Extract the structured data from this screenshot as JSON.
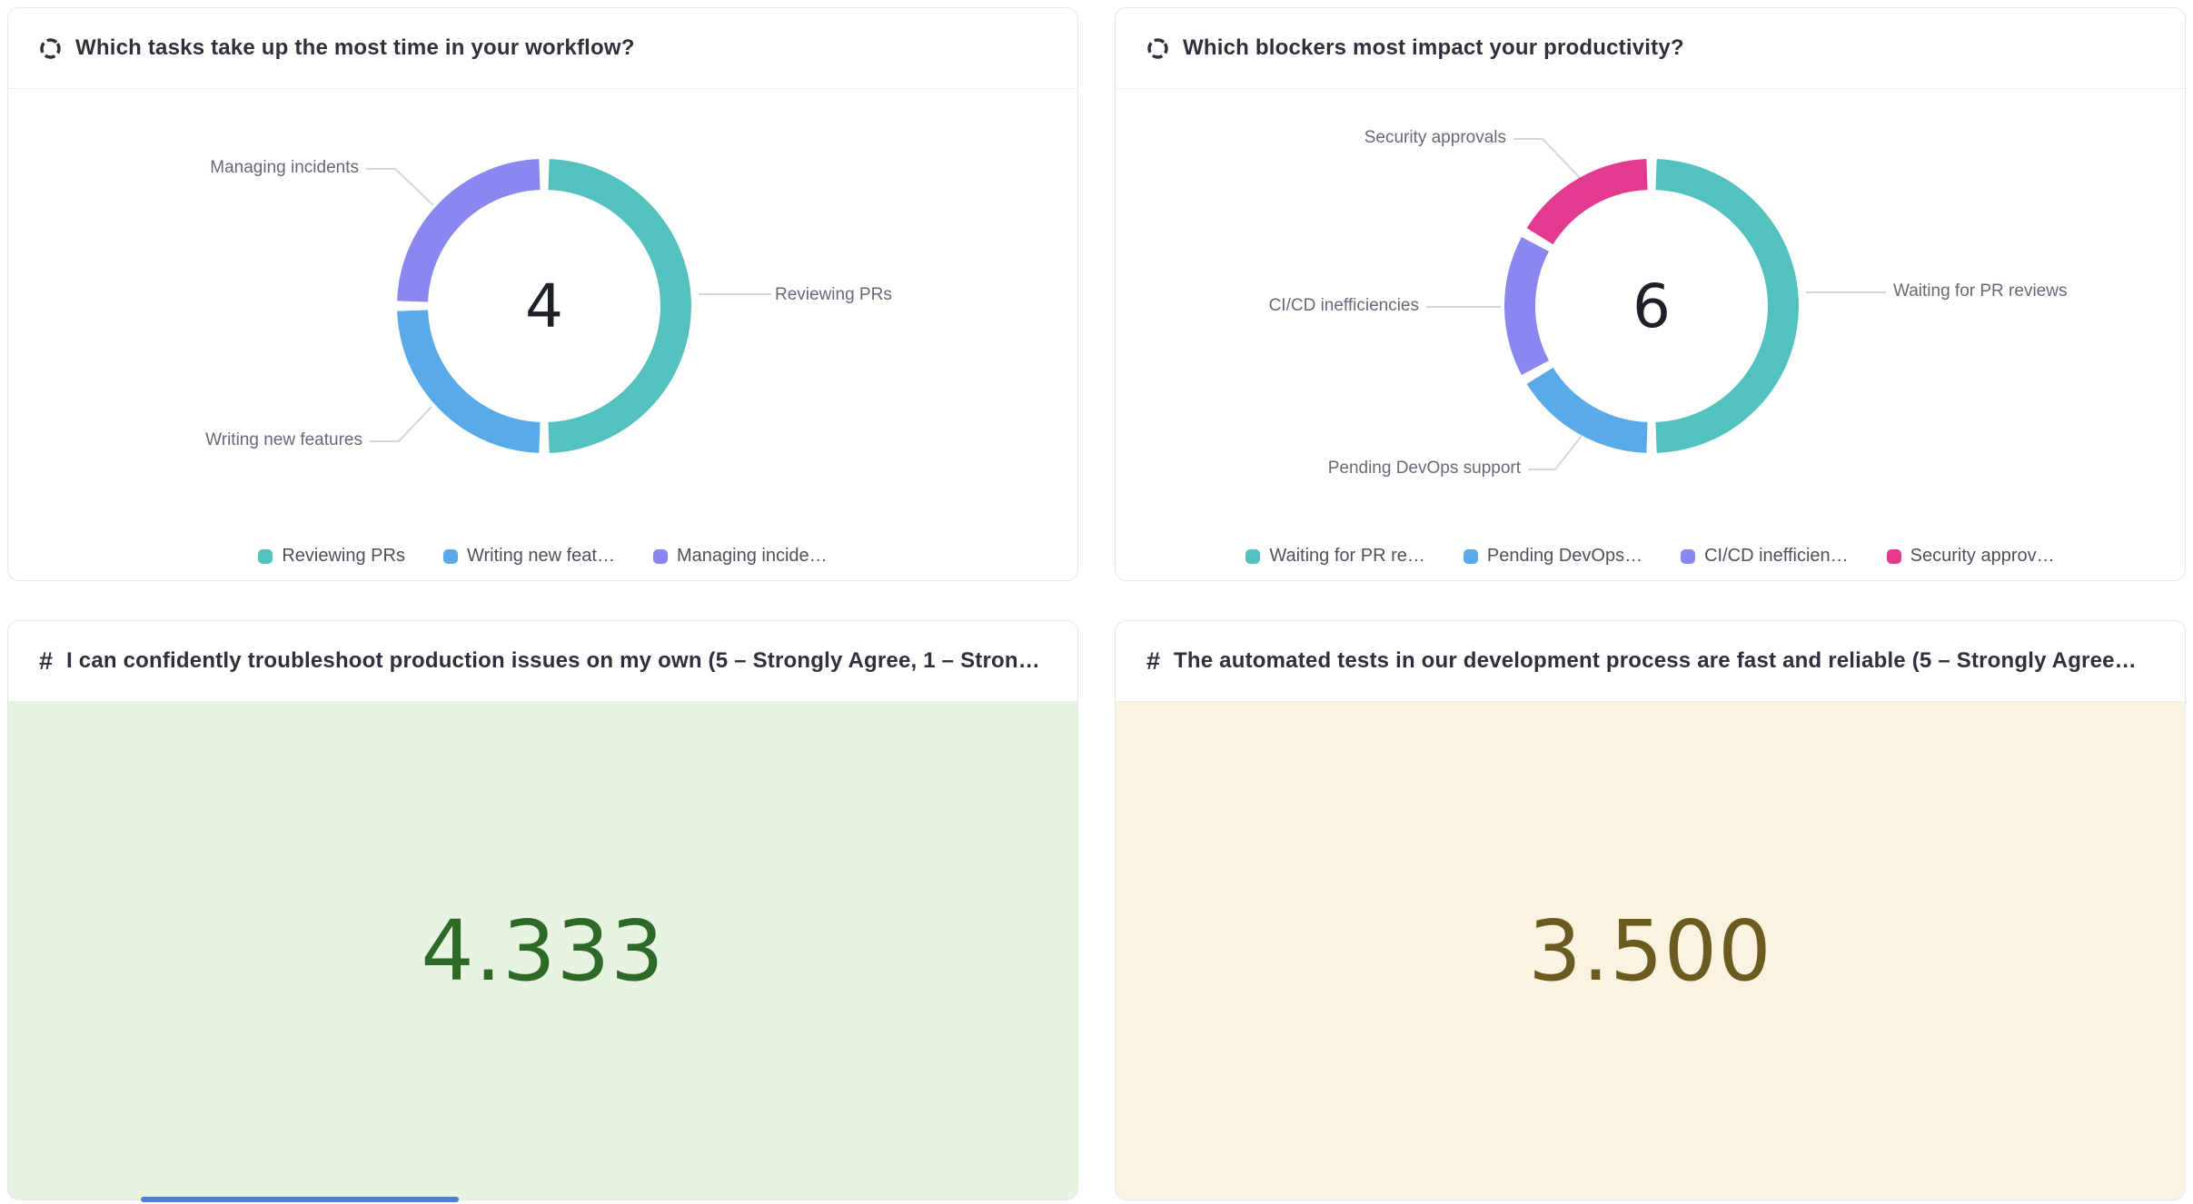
{
  "page": {
    "background": "#ffffff",
    "scrollbar_color": "#4D7EDC"
  },
  "cards": [
    {
      "type": "pie",
      "icon": "donut-chart-icon",
      "title": "Which tasks take up the most time in your workflow?",
      "center_value": "4",
      "callouts": [
        "Managing incidents",
        "Writing new features",
        "Reviewing PRs"
      ],
      "legend": [
        {
          "label": "Reviewing PRs",
          "color": "#53C1BE"
        },
        {
          "label": "Writing new feat…",
          "color": "#58AAE8"
        },
        {
          "label": "Managing incide…",
          "color": "#8B87F0"
        }
      ]
    },
    {
      "type": "pie",
      "icon": "donut-chart-icon",
      "title": "Which blockers most impact your productivity?",
      "center_value": "6",
      "callouts": [
        "Security approvals",
        "CI/CD inefficiencies",
        "Waiting for PR reviews",
        "Pending DevOps support"
      ],
      "legend": [
        {
          "label": "Waiting for PR re…",
          "color": "#53C1BE"
        },
        {
          "label": "Pending DevOps…",
          "color": "#58AAE8"
        },
        {
          "label": "CI/CD inefficien…",
          "color": "#8B87F0"
        },
        {
          "label": "Security approv…",
          "color": "#E23A8E"
        }
      ]
    },
    {
      "type": "number",
      "icon": "hash-icon",
      "title": "I can confidently troubleshoot production issues on my own (5 – Strongly Agree, 1 – Stron…",
      "value": "4.333",
      "value_color": "#2D6A27",
      "background": "#E8F3E2"
    },
    {
      "type": "number",
      "icon": "hash-icon",
      "title": "The automated tests in our development process are fast and reliable (5 – Strongly Agree…",
      "value": "3.500",
      "value_color": "#6B5B1F",
      "background": "#FAF3E1"
    }
  ],
  "chart_data": [
    {
      "type": "pie",
      "donut": true,
      "title": "Which tasks take up the most time in your workflow?",
      "center_label": "4",
      "total_responses": 4,
      "legend_position": "bottom",
      "series": [
        {
          "name": "Reviewing PRs",
          "value": 2,
          "color": "#53C1BE"
        },
        {
          "name": "Writing new features",
          "value": 1,
          "color": "#58AAE8"
        },
        {
          "name": "Managing incidents",
          "value": 1,
          "color": "#8B87F0"
        }
      ]
    },
    {
      "type": "pie",
      "donut": true,
      "title": "Which blockers most impact your productivity?",
      "center_label": "6",
      "total_responses": 6,
      "legend_position": "bottom",
      "series": [
        {
          "name": "Waiting for PR reviews",
          "value": 3,
          "color": "#53C1BE"
        },
        {
          "name": "Pending DevOps support",
          "value": 1,
          "color": "#58AAE8"
        },
        {
          "name": "CI/CD inefficiencies",
          "value": 1,
          "color": "#8B87F0"
        },
        {
          "name": "Security approvals",
          "value": 1,
          "color": "#E23A8E"
        }
      ]
    },
    {
      "type": "number",
      "title": "I can confidently troubleshoot production issues on my own (5 – Strongly Agree, 1 – Stron…",
      "value": 4.333
    },
    {
      "type": "number",
      "title": "The automated tests in our development process are fast and reliable (5 – Strongly Agree…",
      "value": 3.5
    }
  ]
}
